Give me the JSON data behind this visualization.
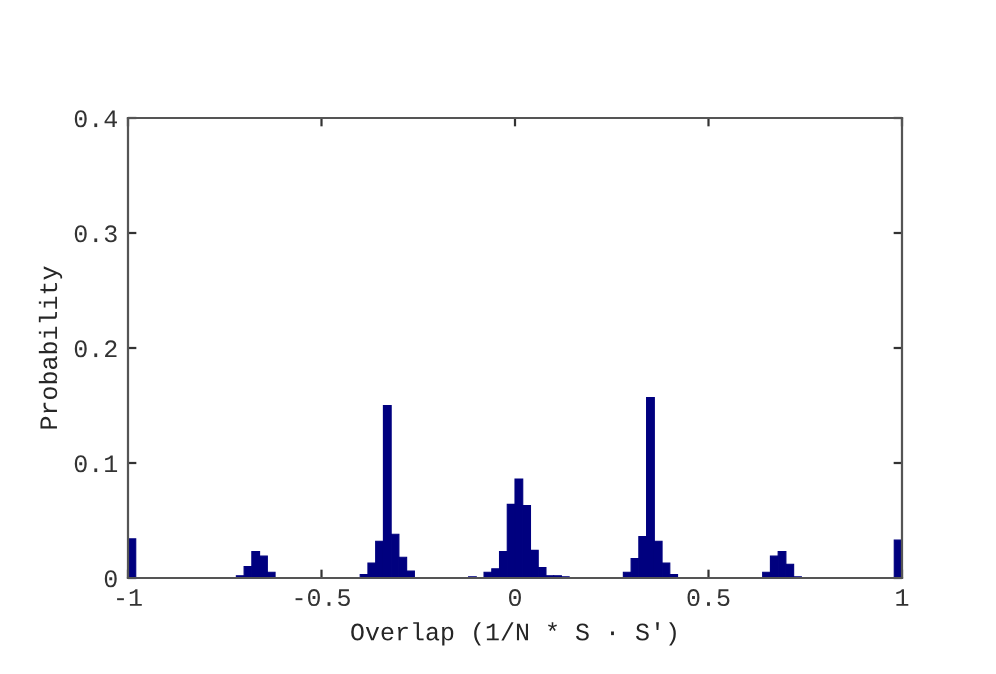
{
  "chart_data": {
    "type": "histogram",
    "xlabel": "Overlap (1/N * S · S′)",
    "ylabel": "Probability",
    "color": "#00007f",
    "bins": [
      -1,
      -0.98,
      -0.96,
      -0.94,
      -0.92,
      -0.9,
      -0.88,
      -0.86,
      -0.84,
      -0.82,
      -0.8,
      -0.78,
      -0.76,
      -0.74,
      -0.72,
      -0.7,
      -0.68,
      -0.66,
      -0.64,
      -0.62,
      -0.6,
      -0.58,
      -0.56,
      -0.54,
      -0.52,
      -0.5,
      -0.48,
      -0.46,
      -0.44,
      -0.42,
      -0.4,
      -0.38,
      -0.36,
      -0.34,
      -0.32,
      -0.3,
      -0.28,
      -0.26,
      -0.24,
      -0.22,
      -0.2,
      -0.18,
      -0.16,
      -0.14,
      -0.12,
      -0.1,
      -0.08,
      -0.06,
      -0.04,
      -0.02,
      0,
      0.02,
      0.04,
      0.06,
      0.08,
      0.1,
      0.12,
      0.14,
      0.16,
      0.18,
      0.2,
      0.22,
      0.24,
      0.26,
      0.28,
      0.3,
      0.32,
      0.34,
      0.36,
      0.38,
      0.4,
      0.42,
      0.44,
      0.46,
      0.48,
      0.5,
      0.52,
      0.54,
      0.56,
      0.58,
      0.6,
      0.62,
      0.64,
      0.66,
      0.68,
      0.7,
      0.72,
      0.74,
      0.76,
      0.78,
      0.8,
      0.82,
      0.84,
      0.86,
      0.88,
      0.9,
      0.92,
      0.94,
      0.96,
      0.98,
      1
    ],
    "values": [
      0.034,
      0,
      0,
      0,
      0,
      0,
      0,
      0,
      0,
      0,
      0,
      0,
      0,
      0,
      0.002,
      0.01,
      0.023,
      0.019,
      0.005,
      0,
      0,
      0,
      0,
      0,
      0,
      0,
      0,
      0,
      0,
      0,
      0.003,
      0.013,
      0.032,
      0.15,
      0.038,
      0.018,
      0.006,
      0,
      0,
      0,
      0,
      0,
      0,
      0,
      0.001,
      0,
      0.005,
      0.008,
      0.023,
      0.064,
      0.086,
      0.063,
      0.024,
      0.009,
      0.002,
      0.002,
      0.001,
      0,
      0,
      0,
      0,
      0,
      0,
      0,
      0.005,
      0.017,
      0.036,
      0.157,
      0.032,
      0.013,
      0.003,
      0,
      0,
      0,
      0,
      0,
      0,
      0,
      0,
      0,
      0,
      0,
      0.005,
      0.019,
      0.023,
      0.012,
      0.001,
      0,
      0,
      0,
      0,
      0,
      0,
      0,
      0,
      0,
      0,
      0,
      0,
      0.033
    ],
    "xlim": [
      -1,
      1
    ],
    "xticks": [
      -1,
      -0.5,
      0,
      0.5,
      1
    ],
    "ylim": [
      0,
      0.4
    ],
    "yticks": [
      0,
      0.1,
      0.2,
      0.3,
      0.4
    ],
    "grid": false
  }
}
